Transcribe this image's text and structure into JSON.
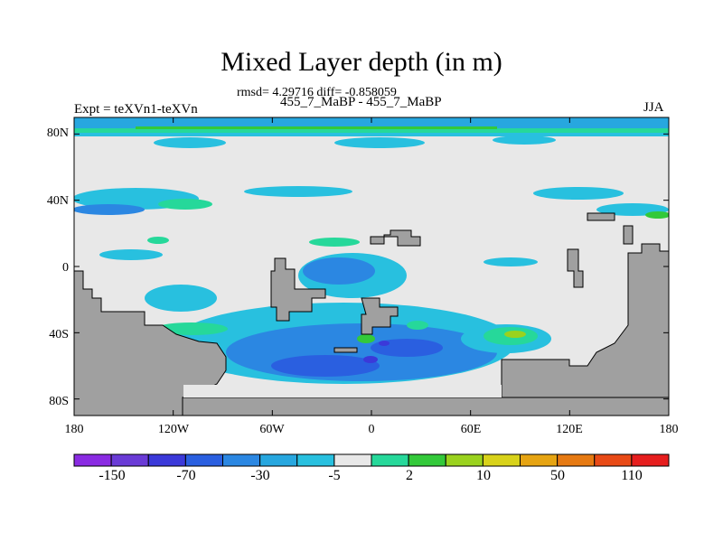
{
  "title": "Mixed Layer depth (in m)",
  "stats": "rmsd= 4.29716 diff= -0.858059",
  "left_label": "Expt = teXVn1-teXVn",
  "center_label": "455_7_MaBP - 455_7_MaBP",
  "right_label": "JJA",
  "lat_ticks": [
    "80N",
    "40N",
    "0",
    "40S",
    "80S"
  ],
  "lat_values": [
    80,
    40,
    0,
    -40,
    -80
  ],
  "lon_ticks": [
    "180",
    "120W",
    "60W",
    "0",
    "60E",
    "120E",
    "180"
  ],
  "lon_values": [
    -180,
    -120,
    -60,
    0,
    60,
    120,
    180
  ],
  "colorbar": {
    "colors": [
      "#8a2be2",
      "#6a3bd6",
      "#3b39d9",
      "#2a5fe0",
      "#2b87e2",
      "#27a7df",
      "#28c0df",
      "#e8e8e8",
      "#26d89a",
      "#33c93a",
      "#9ad21e",
      "#d8d21a",
      "#e6a412",
      "#e67a12",
      "#e84a16",
      "#e61e1e"
    ],
    "labels": [
      "-150",
      "-70",
      "-30",
      "-5",
      "2",
      "10",
      "50",
      "110"
    ]
  },
  "colors": {
    "land": "#a0a0a0",
    "ocean_neutral": "#e8e8e8"
  }
}
